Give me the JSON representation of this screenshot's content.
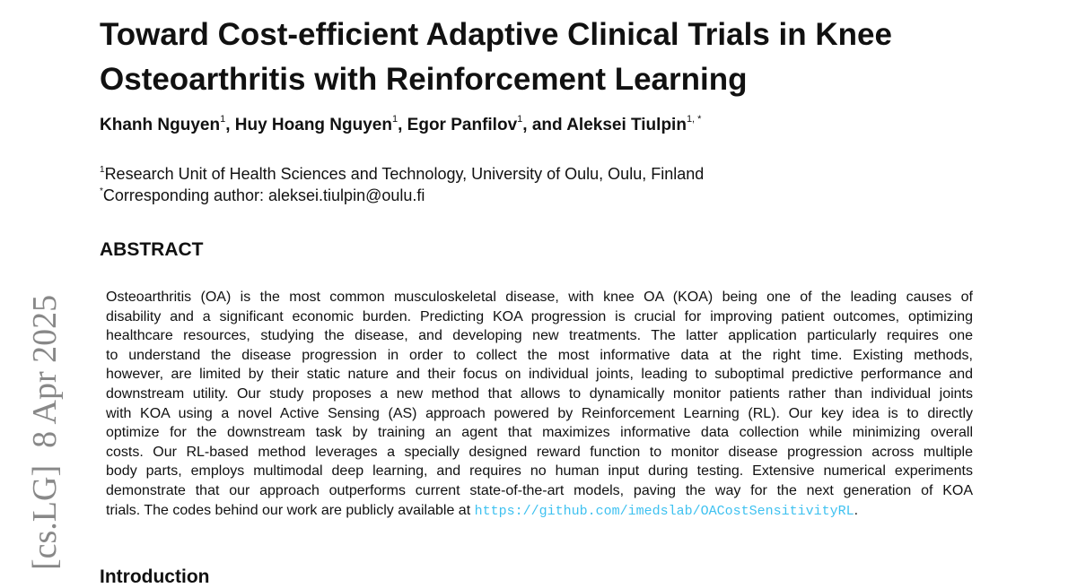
{
  "title_lines": [
    "Toward Cost-efficient Adaptive Clinical Trials in Knee",
    "Osteoarthritis with Reinforcement Learning"
  ],
  "authors": [
    {
      "name": "Khanh Nguyen",
      "sup": "1"
    },
    {
      "name": "Huy Hoang Nguyen",
      "sup": "1"
    },
    {
      "name": "Egor Panfilov",
      "sup": "1"
    },
    {
      "name": "Aleksei Tiulpin",
      "sup": "1, *"
    }
  ],
  "author_separator": ", ",
  "author_and": ", and ",
  "affiliation": {
    "sup": "1",
    "text": "Research Unit of Health Sciences and Technology, University of Oulu, Oulu, Finland"
  },
  "corresponding": {
    "sup": "*",
    "text": "Corresponding author: aleksei.tiulpin@oulu.fi"
  },
  "abstract_heading": "ABSTRACT",
  "abstract_lines": [
    "Osteoarthritis (OA) is the most common musculoskeletal disease, with knee OA (KOA) being one of the leading causes of",
    "disability and a significant economic burden. Predicting KOA progression is crucial for improving patient outcomes, optimizing",
    "healthcare resources, studying the disease, and developing new treatments. The latter application particularly requires one",
    "to understand the disease progression in order to collect the most informative data at the right time.  Existing methods,",
    "however, are limited by their static nature and their focus on individual joints, leading to suboptimal predictive performance and",
    "downstream utility. Our study proposes a new method that allows to dynamically monitor patients rather than individual joints",
    "with KOA using a novel Active Sensing (AS) approach powered by Reinforcement Learning (RL). Our key idea is to directly",
    "optimize for the downstream task by training an agent that maximizes informative data collection while minimizing overall",
    "costs. Our RL-based method leverages a specially designed reward function to monitor disease progression across multiple",
    "body parts, employs multimodal deep learning, and requires no human input during testing. Extensive numerical experiments",
    "demonstrate that our approach outperforms current state-of-the-art models, paving the way for the next generation of KOA"
  ],
  "abstract_last_line": "trials. The codes behind our work are publicly available at ",
  "code_url": "https://github.com/imedslab/OACostSensitivityRL",
  "abstract_end": ".",
  "introduction_heading": "Introduction",
  "arxiv_sidebar": "[cs.LG]  8 Apr 2025",
  "colors": {
    "link": "#3ec1f0",
    "sidebar": "#888888"
  }
}
